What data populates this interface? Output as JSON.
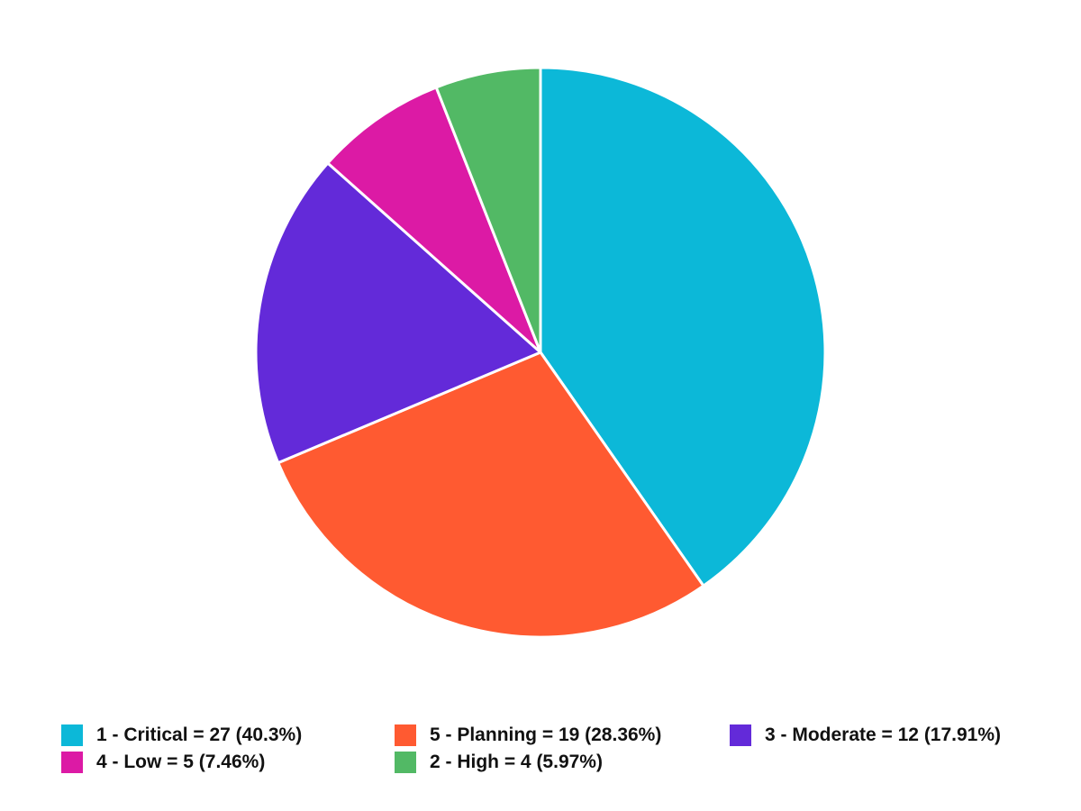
{
  "chart_data": {
    "type": "pie",
    "title": "",
    "slices": [
      {
        "label": "1 - Critical",
        "value": 27,
        "percent": 40.3,
        "legend_text": "1 - Critical = 27 (40.3%)",
        "color": "#0cb8d8"
      },
      {
        "label": "5 - Planning",
        "value": 19,
        "percent": 28.36,
        "legend_text": "5 - Planning = 19 (28.36%)",
        "color": "#ff5a31"
      },
      {
        "label": "3 - Moderate",
        "value": 12,
        "percent": 17.91,
        "legend_text": "3 - Moderate = 12 (17.91%)",
        "color": "#632ad9"
      },
      {
        "label": "4 - Low",
        "value": 5,
        "percent": 7.46,
        "legend_text": "4 - Low = 5 (7.46%)",
        "color": "#dc1aa5"
      },
      {
        "label": "2 - High",
        "value": 4,
        "percent": 5.97,
        "legend_text": "2 - High = 4 (5.97%)",
        "color": "#52b965"
      }
    ],
    "legend_position": "bottom",
    "start_angle": "12 o'clock",
    "direction": "clockwise"
  }
}
